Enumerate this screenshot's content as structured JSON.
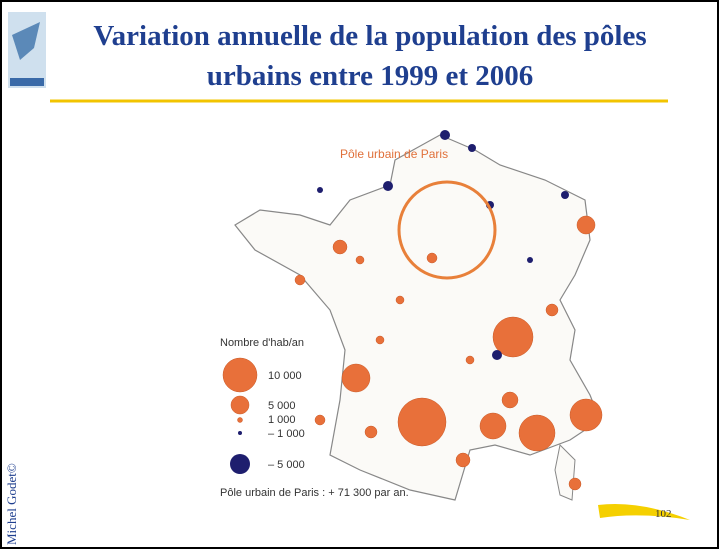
{
  "title": {
    "line1": "Variation annuelle de la population des pôles",
    "line2": "urbains entre 1999 et 2006"
  },
  "map": {
    "annotation": "Pôle urbain de Paris",
    "legend": {
      "title": "Nombre d'hab/an",
      "items": [
        "10 000",
        "5 000",
        "1 000",
        "– 1 000",
        "– 5 000"
      ]
    },
    "note": "Pôle urbain de Paris : + 71 300 par an."
  },
  "footer": {
    "author": "Michel Godet©",
    "page": "102"
  }
}
